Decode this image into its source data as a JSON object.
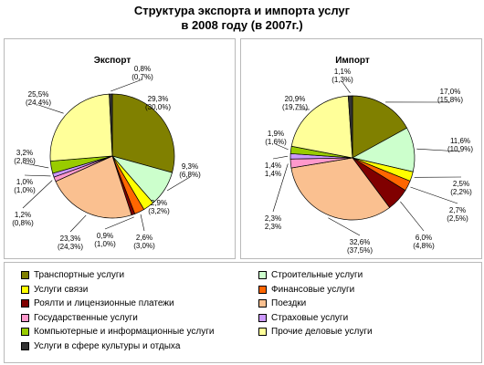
{
  "title_line1": "Структура экспорта и импорта услуг",
  "title_line2": "в 2008 году (в 2007г.)",
  "chart_data": [
    {
      "type": "pie",
      "title": "Экспорт",
      "slices": [
        {
          "category": "Транспортные услуги",
          "value": 29.3,
          "prev": 30.0,
          "label1": "29,3%",
          "label2": "(30,0%)"
        },
        {
          "category": "Строительные услуги",
          "value": 9.3,
          "prev": 6.8,
          "label1": "9,3%",
          "label2": "(6,8%)"
        },
        {
          "category": "Услуги связи",
          "value": 2.9,
          "prev": 3.2,
          "label1": "2,9%",
          "label2": "(3,2%)"
        },
        {
          "category": "Финансовые услуги",
          "value": 2.6,
          "prev": 3.0,
          "label1": "2,6%",
          "label2": "(3,0%)"
        },
        {
          "category": "Роялти и лицензионные платежи",
          "value": 0.9,
          "prev": 1.0,
          "label1": "0,9%",
          "label2": "(1,0%)"
        },
        {
          "category": "Поездки",
          "value": 23.3,
          "prev": 24.3,
          "label1": "23,3%",
          "label2": "(24,3%)"
        },
        {
          "category": "Государственные услуги",
          "value": 1.2,
          "prev": 0.8,
          "label1": "1,2%",
          "label2": "(0,8%)"
        },
        {
          "category": "Страховые услуги",
          "value": 1.0,
          "prev": 1.0,
          "label1": "1,0%",
          "label2": "(1,0%)"
        },
        {
          "category": "Компьютерные и информационные услуги",
          "value": 3.2,
          "prev": 2.8,
          "label1": "3,2%",
          "label2": "(2,8%)"
        },
        {
          "category": "Прочие деловые услуги",
          "value": 25.5,
          "prev": 24.4,
          "label1": "25,5%",
          "label2": "(24,4%)"
        },
        {
          "category": "Услуги в сфере культуры и отдыха",
          "value": 0.8,
          "prev": 0.7,
          "label1": "0,8%",
          "label2": "(0,7%)"
        }
      ]
    },
    {
      "type": "pie",
      "title": "Импорт",
      "slices": [
        {
          "category": "Транспортные услуги",
          "value": 17.0,
          "prev": 15.8,
          "label1": "17,0%",
          "label2": "(15,8%)"
        },
        {
          "category": "Строительные услуги",
          "value": 11.6,
          "prev": 10.9,
          "label1": "11,6%",
          "label2": "(10,9%)"
        },
        {
          "category": "Услуги связи",
          "value": 2.5,
          "prev": 2.2,
          "label1": "2,5%",
          "label2": "(2,2%)"
        },
        {
          "category": "Финансовые услуги",
          "value": 2.7,
          "prev": 2.5,
          "label1": "2,7%",
          "label2": "(2,5%)"
        },
        {
          "category": "Роялти и лицензионные платежи",
          "value": 6.0,
          "prev": 4.8,
          "label1": "6,0%",
          "label2": "(4,8%)"
        },
        {
          "category": "Поездки",
          "value": 32.6,
          "prev": 37.5,
          "label1": "32,6%",
          "label2": "(37,5%)"
        },
        {
          "category": "Государственные услуги",
          "value": 2.3,
          "prev": 2.3,
          "label1": "2,3%",
          "label2": "2,3%"
        },
        {
          "category": "Страховые услуги",
          "value": 1.4,
          "prev": 1.4,
          "label1": "1,4%",
          "label2": "1,4%"
        },
        {
          "category": "Компьютерные и информационные услуги",
          "value": 1.9,
          "prev": 1.6,
          "label1": "1,9%",
          "label2": "(1,6%)"
        },
        {
          "category": "Прочие деловые услуги",
          "value": 20.9,
          "prev": 19.7,
          "label1": "20,9%",
          "label2": "(19,7%)"
        },
        {
          "category": "Услуги в сфере культуры и отдыха",
          "value": 1.1,
          "prev": 1.3,
          "label1": "1,1%",
          "label2": "(1,3%)"
        }
      ]
    }
  ],
  "legend": [
    {
      "label": "Транспортные услуги",
      "color": "#808000"
    },
    {
      "label": "Строительные услуги",
      "color": "#ccffcc"
    },
    {
      "label": "Услуги связи",
      "color": "#ffff00"
    },
    {
      "label": "Финансовые услуги",
      "color": "#ff6600"
    },
    {
      "label": "Роялти и лицензионные платежи",
      "color": "#800000"
    },
    {
      "label": "Поездки",
      "color": "#fac090"
    },
    {
      "label": "Государственные услуги",
      "color": "#ff99cc"
    },
    {
      "label": "Страховые услуги",
      "color": "#cc99ff"
    },
    {
      "label": "Компьютерные и информационные услуги",
      "color": "#99cc00"
    },
    {
      "label": "Прочие деловые услуги",
      "color": "#ffff99"
    },
    {
      "label": "Услуги в сфере культуры и отдыха",
      "color": "#333333"
    }
  ]
}
